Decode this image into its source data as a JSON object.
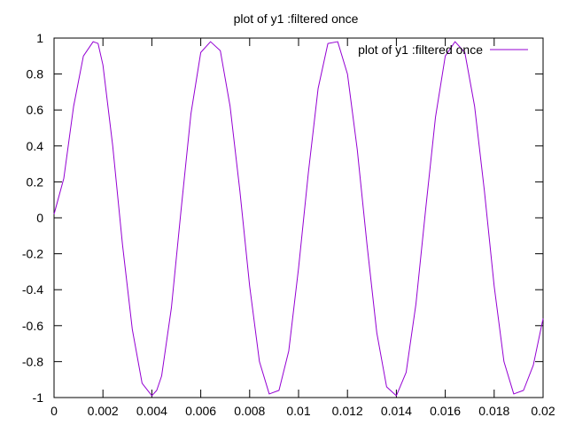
{
  "chart_data": {
    "type": "line",
    "title": "plot of y1 :filtered once",
    "xlabel": "",
    "ylabel": "",
    "xlim": [
      0,
      0.02
    ],
    "ylim": [
      -1,
      1
    ],
    "x_ticks": [
      "0",
      "0.002",
      "0.004",
      "0.006",
      "0.008",
      "0.01",
      "0.012",
      "0.014",
      "0.016",
      "0.018",
      "0.02"
    ],
    "y_ticks": [
      "-1",
      "-0.8",
      "-0.6",
      "-0.4",
      "-0.2",
      "0",
      "0.2",
      "0.4",
      "0.6",
      "0.8",
      "1"
    ],
    "grid": false,
    "legend_position": "top-right",
    "series": [
      {
        "name": "plot of y1 :filtered once",
        "color": "#9400d3",
        "x": [
          0.0,
          0.0004,
          0.0008,
          0.0012,
          0.0016,
          0.0018,
          0.002,
          0.0024,
          0.0028,
          0.0032,
          0.0036,
          0.004,
          0.0042,
          0.0044,
          0.0048,
          0.0052,
          0.0056,
          0.006,
          0.0064,
          0.0068,
          0.0072,
          0.0076,
          0.008,
          0.0084,
          0.0088,
          0.0092,
          0.0096,
          0.01,
          0.0104,
          0.0108,
          0.0112,
          0.0116,
          0.012,
          0.0124,
          0.0128,
          0.0132,
          0.0136,
          0.014,
          0.0144,
          0.0148,
          0.0152,
          0.0156,
          0.016,
          0.0164,
          0.0168,
          0.0172,
          0.0176,
          0.018,
          0.0184,
          0.0188,
          0.0192,
          0.0196,
          0.02
        ],
        "y": [
          0.02,
          0.22,
          0.62,
          0.9,
          0.98,
          0.97,
          0.85,
          0.4,
          -0.15,
          -0.62,
          -0.92,
          -0.99,
          -0.96,
          -0.88,
          -0.5,
          0.05,
          0.58,
          0.92,
          0.98,
          0.93,
          0.62,
          0.15,
          -0.38,
          -0.8,
          -0.98,
          -0.96,
          -0.74,
          -0.28,
          0.25,
          0.72,
          0.97,
          0.98,
          0.8,
          0.38,
          -0.15,
          -0.64,
          -0.94,
          -0.99,
          -0.86,
          -0.48,
          0.05,
          0.56,
          0.9,
          0.98,
          0.92,
          0.62,
          0.15,
          -0.38,
          -0.8,
          -0.98,
          -0.96,
          -0.82,
          -0.56
        ]
      }
    ]
  }
}
